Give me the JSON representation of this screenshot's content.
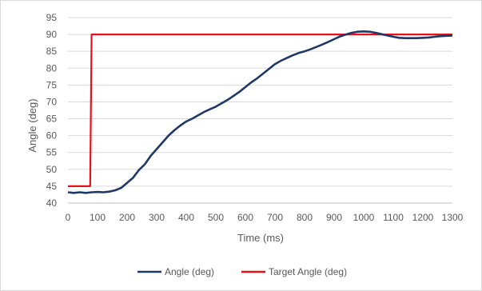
{
  "chart_data": {
    "type": "line",
    "title": "",
    "xlabel": "Time (ms)",
    "ylabel": "Angle (deg)",
    "xlim": [
      0,
      1300
    ],
    "ylim": [
      40,
      95
    ],
    "x_ticks": [
      0,
      100,
      200,
      300,
      400,
      500,
      600,
      700,
      800,
      900,
      1000,
      1100,
      1200,
      1300
    ],
    "y_ticks": [
      40,
      45,
      50,
      55,
      60,
      65,
      70,
      75,
      80,
      85,
      90,
      95
    ],
    "grid": "horizontal",
    "legend_position": "bottom",
    "series": [
      {
        "name": "Angle (deg)",
        "color": "#1f3864",
        "points": [
          [
            0,
            43.2
          ],
          [
            20,
            43.0
          ],
          [
            40,
            43.2
          ],
          [
            60,
            43.0
          ],
          [
            80,
            43.2
          ],
          [
            100,
            43.3
          ],
          [
            120,
            43.2
          ],
          [
            140,
            43.4
          ],
          [
            160,
            43.8
          ],
          [
            180,
            44.5
          ],
          [
            200,
            46.0
          ],
          [
            220,
            47.5
          ],
          [
            240,
            49.8
          ],
          [
            260,
            51.5
          ],
          [
            280,
            54.0
          ],
          [
            300,
            56.0
          ],
          [
            320,
            58.0
          ],
          [
            340,
            60.0
          ],
          [
            360,
            61.6
          ],
          [
            380,
            63.0
          ],
          [
            400,
            64.2
          ],
          [
            420,
            65.0
          ],
          [
            440,
            66.0
          ],
          [
            460,
            67.0
          ],
          [
            480,
            67.8
          ],
          [
            500,
            68.6
          ],
          [
            520,
            69.6
          ],
          [
            540,
            70.6
          ],
          [
            560,
            71.8
          ],
          [
            580,
            73.0
          ],
          [
            600,
            74.4
          ],
          [
            620,
            75.8
          ],
          [
            640,
            77.0
          ],
          [
            660,
            78.4
          ],
          [
            680,
            79.8
          ],
          [
            700,
            81.2
          ],
          [
            720,
            82.2
          ],
          [
            740,
            83.0
          ],
          [
            760,
            83.8
          ],
          [
            780,
            84.5
          ],
          [
            800,
            85.0
          ],
          [
            820,
            85.6
          ],
          [
            840,
            86.3
          ],
          [
            860,
            87.0
          ],
          [
            880,
            87.8
          ],
          [
            900,
            88.6
          ],
          [
            920,
            89.4
          ],
          [
            940,
            90.0
          ],
          [
            960,
            90.5
          ],
          [
            980,
            90.8
          ],
          [
            1000,
            90.9
          ],
          [
            1020,
            90.8
          ],
          [
            1040,
            90.5
          ],
          [
            1060,
            90.1
          ],
          [
            1080,
            89.7
          ],
          [
            1100,
            89.3
          ],
          [
            1120,
            89.0
          ],
          [
            1140,
            88.9
          ],
          [
            1160,
            88.9
          ],
          [
            1180,
            88.9
          ],
          [
            1200,
            89.0
          ],
          [
            1220,
            89.1
          ],
          [
            1240,
            89.3
          ],
          [
            1260,
            89.5
          ],
          [
            1280,
            89.6
          ],
          [
            1300,
            89.7
          ]
        ]
      },
      {
        "name": "Target Angle (deg)",
        "color": "#e8101a",
        "points": [
          [
            0,
            45
          ],
          [
            75,
            45
          ],
          [
            80,
            90
          ],
          [
            1300,
            90
          ]
        ]
      }
    ]
  }
}
